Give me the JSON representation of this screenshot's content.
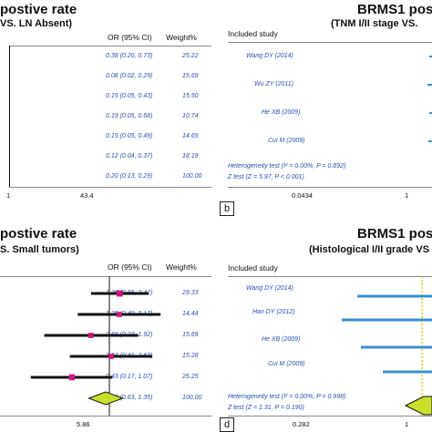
{
  "colors": {
    "study_text": "#2a4fb0",
    "ci_black": "#111111",
    "ci_blue": "#3a8fd0",
    "marker_pink": "#d0157a",
    "diamond_fill": "#c8e02c",
    "null_line_yellow": "#d8d000"
  },
  "panels": {
    "a": {
      "title": "postive rate",
      "subtitle": "VS. LN Absent)",
      "col_or": "OR (95% CI)",
      "col_weight": "Weight%",
      "rows": [
        {
          "or": "0.38 (0.20, 0.73)",
          "weight": "25.22"
        },
        {
          "or": "0.08 (0.02, 0.29)",
          "weight": "15.69"
        },
        {
          "or": "0.15 (0.05, 0.43)",
          "weight": "15.50"
        },
        {
          "or": "0.19 (0.05, 0.68)",
          "weight": "10.74"
        },
        {
          "or": "0.15 (0.05, 0.49)",
          "weight": "14.65"
        },
        {
          "or": "0.12 (0.04, 0.37)",
          "weight": "18.19"
        },
        {
          "or": "0.20 (0.13, 0.29)",
          "weight": "100.00"
        }
      ],
      "tick_left": "1",
      "tick_right": "43.4"
    },
    "b": {
      "letter": "b",
      "title": "BRMS1 pos",
      "subtitle": "(TNM I/II stage VS.",
      "col_study": "Included study",
      "studies": [
        "Wang DY (2014)",
        "Wu ZY (2011)",
        "He XB (2009)",
        "Cui M (2009)"
      ],
      "heterogeneity": "Heterogeneity test (I² = 0.00%, P = 0.892)",
      "z_test": "Z test (Z = 5.97, P < 0.001)",
      "tick_left": "0.0434",
      "tick_right": "1"
    },
    "c": {
      "title": "postive rate",
      "subtitle": "S. Small tumors)",
      "col_or": "OR (95% CI)",
      "col_weight": "Weight%",
      "rows": [
        {
          "or": "1.26 (0.66, 2.42)",
          "weight": "29.33"
        },
        {
          "or": "1.25 (0.49, 3.17)",
          "weight": "14.44"
        },
        {
          "or": "0.66 (0.23, 1.92)",
          "weight": "15.69"
        },
        {
          "or": "1.04 (0.41, 2.63)",
          "weight": "15.28"
        },
        {
          "or": "0.43 (0.17, 1.07)",
          "weight": "25.25"
        },
        {
          "or": "0.92 (0.63, 1.35)",
          "weight": "100.00"
        }
      ],
      "tick_right": "5.86"
    },
    "d": {
      "letter": "d",
      "title": "BRMS1 pos",
      "subtitle": "(Histological I/II grade VS",
      "col_study": "Included study",
      "studies": [
        "Wang DY (2014)",
        "Han DY (2012)",
        "He XB (2009)",
        "Cui M (2009)"
      ],
      "heterogeneity": "Heterogeneity test (I² = 0.00%, P = 0.998)",
      "z_test": "Z test (Z = 1.31, P = 0.190)",
      "tick_left": "0.282",
      "tick_right": "1"
    }
  },
  "chart_data": [
    {
      "type": "forest",
      "panel": "a",
      "rows": [
        {
          "or": 0.38,
          "lo": 0.2,
          "hi": 0.73,
          "weight": 25.22
        },
        {
          "or": 0.08,
          "lo": 0.02,
          "hi": 0.29,
          "weight": 15.69
        },
        {
          "or": 0.15,
          "lo": 0.05,
          "hi": 0.43,
          "weight": 15.5
        },
        {
          "or": 0.19,
          "lo": 0.05,
          "hi": 0.68,
          "weight": 10.74
        },
        {
          "or": 0.15,
          "lo": 0.05,
          "hi": 0.49,
          "weight": 14.65
        },
        {
          "or": 0.12,
          "lo": 0.04,
          "hi": 0.37,
          "weight": 18.19
        },
        {
          "or": 0.2,
          "lo": 0.13,
          "hi": 0.29,
          "weight": 100.0,
          "pooled": true
        }
      ],
      "x_ticks": [
        "1",
        "43.4"
      ]
    },
    {
      "type": "forest",
      "panel": "c",
      "rows": [
        {
          "or": 1.26,
          "lo": 0.66,
          "hi": 2.42,
          "weight": 29.33
        },
        {
          "or": 1.25,
          "lo": 0.49,
          "hi": 3.17,
          "weight": 14.44
        },
        {
          "or": 0.66,
          "lo": 0.23,
          "hi": 1.92,
          "weight": 15.69
        },
        {
          "or": 1.04,
          "lo": 0.41,
          "hi": 2.63,
          "weight": 15.28
        },
        {
          "or": 0.43,
          "lo": 0.17,
          "hi": 1.07,
          "weight": 25.25
        },
        {
          "or": 0.92,
          "lo": 0.63,
          "hi": 1.35,
          "weight": 100.0,
          "pooled": true
        }
      ],
      "x_ticks": [
        "5.86"
      ]
    },
    {
      "type": "forest",
      "panel": "b",
      "studies": [
        "Wang DY (2014)",
        "Wu ZY (2011)",
        "He XB (2009)",
        "Cui M (2009)"
      ],
      "x_ticks": [
        "0.0434",
        "1"
      ]
    },
    {
      "type": "forest",
      "panel": "d",
      "studies": [
        "Wang DY (2014)",
        "Han DY (2012)",
        "He XB (2009)",
        "Cui M (2009)"
      ],
      "x_ticks": [
        "0.282",
        "1"
      ]
    }
  ]
}
